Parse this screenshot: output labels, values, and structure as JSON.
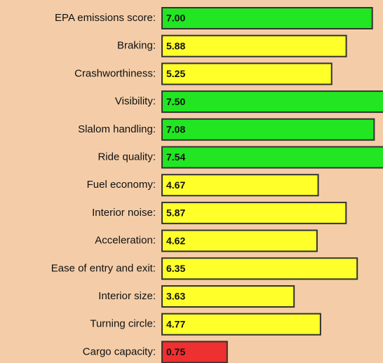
{
  "chart_data": {
    "type": "bar",
    "categories": [
      "EPA emissions score:",
      "Braking:",
      "Crashworthiness:",
      "Visibility:",
      "Slalom handling:",
      "Ride quality:",
      "Fuel economy:",
      "Interior noise:",
      "Acceleration:",
      "Ease of entry and exit:",
      "Interior size:",
      "Turning circle:",
      "Cargo capacity:"
    ],
    "values": [
      7.0,
      5.88,
      5.25,
      7.5,
      7.08,
      7.54,
      4.67,
      5.87,
      4.62,
      6.35,
      3.63,
      4.77,
      0.75
    ],
    "value_labels": [
      "7.00",
      "5.88",
      "5.25",
      "7.50",
      "7.08",
      "7.54",
      "4.67",
      "5.87",
      "4.62",
      "6.35",
      "3.63",
      "4.77",
      "0.75"
    ],
    "colors": [
      "#22e622",
      "#ffff2a",
      "#ffff2a",
      "#22e622",
      "#22e622",
      "#22e622",
      "#ffff2a",
      "#ffff2a",
      "#ffff2a",
      "#ffff2a",
      "#ffff2a",
      "#ffff2a",
      "#ee3030"
    ],
    "xlim": [
      0,
      10
    ]
  }
}
